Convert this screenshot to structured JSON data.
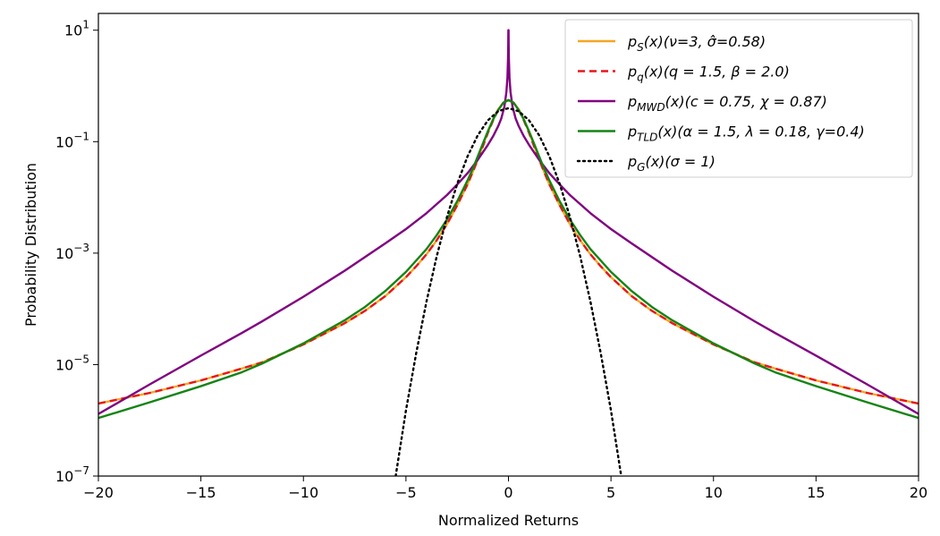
{
  "chart_data": {
    "type": "line",
    "title": "",
    "xlabel": "Normalized Returns",
    "ylabel": "Probability Distribution",
    "xlim": [
      -20,
      20
    ],
    "ylim": [
      1e-07,
      20
    ],
    "yscale": "log",
    "xticks": [
      -20,
      -15,
      -10,
      -5,
      0,
      5,
      10,
      15,
      20
    ],
    "xtick_labels": [
      "−20",
      "−15",
      "−10",
      "−5",
      "0",
      "5",
      "10",
      "15",
      "20"
    ],
    "yticks": [
      {
        "value": 1e-07,
        "base": "10",
        "exp": "−7"
      },
      {
        "value": 1e-05,
        "base": "10",
        "exp": "−5"
      },
      {
        "value": 0.001,
        "base": "10",
        "exp": "−3"
      },
      {
        "value": 0.1,
        "base": "10",
        "exp": "−1"
      },
      {
        "value": 10,
        "base": "10",
        "exp": "1"
      }
    ],
    "legend_position": "top-right",
    "grid": false,
    "series": [
      {
        "name": "pS(x)(ν=3, σ̂=0.58)",
        "legend": {
          "p": "p",
          "sub": "S",
          "rest": "(x)(ν=3, σ̂=0.58)"
        },
        "color": "#f5a623",
        "dash": "solid",
        "x": [
          0,
          0.25,
          0.5,
          0.75,
          1,
          1.25,
          1.5,
          1.75,
          2,
          2.5,
          3,
          3.5,
          4,
          4.5,
          5,
          6,
          7,
          8,
          10,
          12,
          13,
          15,
          17.5,
          20
        ],
        "y": [
          0.55,
          0.5,
          0.38,
          0.25,
          0.15,
          0.085,
          0.048,
          0.028,
          0.017,
          0.0072,
          0.0033,
          0.0017,
          0.00095,
          0.00058,
          0.00037,
          0.00017,
          9.2e-05,
          5.5e-05,
          2.3e-05,
          1.1e-05,
          8.5e-06,
          5.2e-06,
          3.1e-06,
          2e-06
        ]
      },
      {
        "name": "pq(x)(q = 1.5, β = 2.0)",
        "legend": {
          "p": "p",
          "sub": "q",
          "rest": "(x)(q = 1.5, β = 2.0)"
        },
        "color": "#e8161b",
        "dash": "dashed",
        "x": [
          0,
          0.25,
          0.5,
          0.75,
          1,
          1.25,
          1.5,
          1.75,
          2,
          2.5,
          3,
          3.5,
          4,
          4.5,
          5,
          6,
          7,
          8,
          10,
          12,
          13,
          15,
          17.5,
          20
        ],
        "y": [
          0.56,
          0.5,
          0.37,
          0.24,
          0.145,
          0.082,
          0.047,
          0.028,
          0.017,
          0.0072,
          0.0033,
          0.0017,
          0.00095,
          0.00058,
          0.00037,
          0.00017,
          9.2e-05,
          5.5e-05,
          2.3e-05,
          1.1e-05,
          8.5e-06,
          5.2e-06,
          3.1e-06,
          2e-06
        ]
      },
      {
        "name": "pMWD(x)(c = 0.75, χ = 0.87)",
        "legend": {
          "p": "p",
          "sub": "MWD",
          "rest": "(x)(c = 0.75, χ = 0.87)"
        },
        "color": "#800080",
        "dash": "solid",
        "x": [
          0.005,
          0.01,
          0.02,
          0.05,
          0.1,
          0.2,
          0.35,
          0.5,
          0.75,
          1,
          1.5,
          2,
          2.5,
          3,
          4,
          5,
          6,
          8,
          10,
          12,
          13,
          15,
          17.5,
          20
        ],
        "y": [
          10,
          5.5,
          3.2,
          1.4,
          0.78,
          0.42,
          0.26,
          0.19,
          0.125,
          0.088,
          0.047,
          0.027,
          0.017,
          0.011,
          0.0052,
          0.0027,
          0.0015,
          0.00048,
          0.000165,
          6e-05,
          3.7e-05,
          1.45e-05,
          4.4e-06,
          1.3e-06
        ]
      },
      {
        "name": "pTLD(x)(α = 1.5, λ = 0.18, γ=0.4)",
        "legend": {
          "p": "p",
          "sub": "TLD",
          "rest": "(x)(α = 1.5, λ = 0.18, γ=0.4)"
        },
        "color": "#138413",
        "dash": "solid",
        "x": [
          0,
          0.25,
          0.5,
          0.75,
          1,
          1.25,
          1.5,
          1.75,
          2,
          2.5,
          3,
          3.5,
          4,
          5,
          6,
          7,
          8,
          10,
          12,
          13,
          15,
          17.5,
          20
        ],
        "y": [
          0.56,
          0.5,
          0.37,
          0.25,
          0.155,
          0.092,
          0.054,
          0.032,
          0.02,
          0.0085,
          0.004,
          0.0021,
          0.00118,
          0.00046,
          0.00021,
          0.000108,
          6.2e-05,
          2.4e-05,
          1.05e-05,
          7.3e-06,
          4.1e-06,
          2.1e-06,
          1.1e-06
        ]
      },
      {
        "name": "pG(x)(σ = 1)",
        "legend": {
          "p": "p",
          "sub": "G",
          "rest": "(x)(σ = 1)"
        },
        "color": "#000000",
        "dash": "dotted",
        "x": [
          0,
          0.5,
          1,
          1.5,
          2,
          2.5,
          3,
          3.5,
          4,
          4.5,
          5,
          5.5
        ],
        "y": [
          0.399,
          0.352,
          0.242,
          0.1295,
          0.054,
          0.0175,
          0.00443,
          0.000873,
          0.000134,
          1.6e-05,
          1.5e-06,
          1e-07
        ]
      }
    ]
  }
}
